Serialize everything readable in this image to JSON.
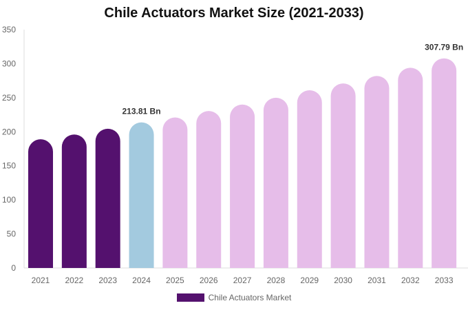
{
  "chart_data": {
    "type": "bar",
    "title": "Chile Actuators Market Size (2021-2033)",
    "categories": [
      "2021",
      "2022",
      "2023",
      "2024",
      "2025",
      "2026",
      "2027",
      "2028",
      "2029",
      "2030",
      "2031",
      "2032",
      "2033"
    ],
    "series": [
      {
        "name": "Chile Actuators Market",
        "values": [
          189,
          196,
          204.5,
          213.81,
          221,
          230.5,
          240,
          250,
          261,
          271,
          282,
          294,
          307.79
        ]
      }
    ],
    "bar_colors": [
      "#54116e",
      "#54116e",
      "#54116e",
      "#a3cadf",
      "#e6bde9",
      "#e6bde9",
      "#e6bde9",
      "#e6bde9",
      "#e6bde9",
      "#e6bde9",
      "#e6bde9",
      "#e6bde9",
      "#e6bde9"
    ],
    "data_labels": {
      "3": "213.81 Bn",
      "12": "307.79 Bn"
    },
    "yticks": [
      "0",
      "50",
      "100",
      "150",
      "200",
      "250",
      "300",
      "350"
    ],
    "ylim": [
      0,
      350
    ],
    "xlabel": "",
    "ylabel": "",
    "grid": false,
    "legend_position": "bottom",
    "legend_color": "#54116e"
  }
}
